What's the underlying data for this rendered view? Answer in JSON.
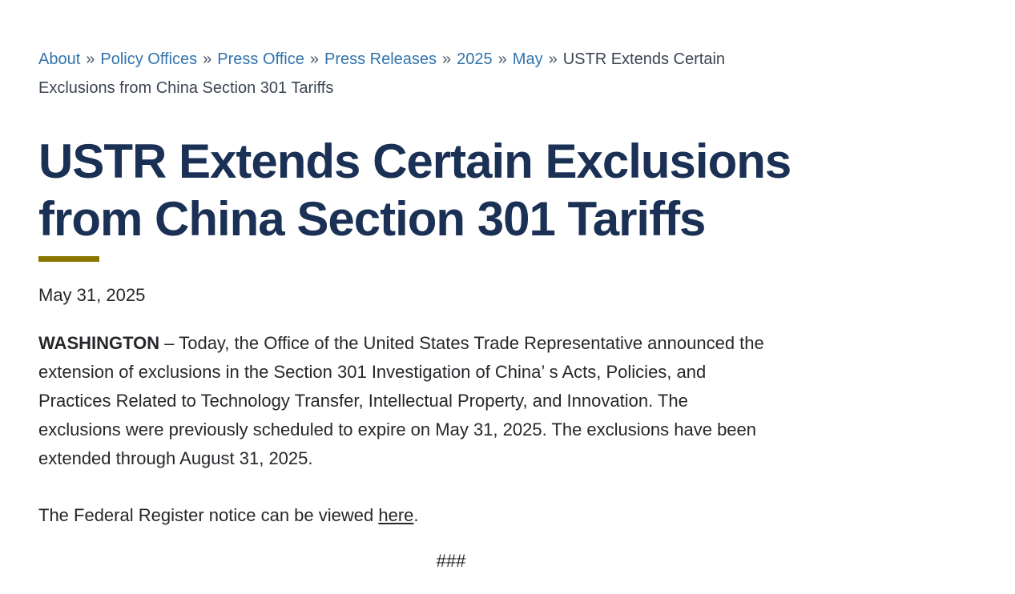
{
  "colors": {
    "link_blue": "#3173ad",
    "heading_navy": "#1a3054",
    "accent_gold": "#8a7400",
    "body_text": "#26272b"
  },
  "breadcrumb": {
    "separator": "»",
    "links": [
      {
        "label": "About"
      },
      {
        "label": "Policy Offices"
      },
      {
        "label": "Press Office"
      },
      {
        "label": "Press Releases"
      },
      {
        "label": "2025"
      },
      {
        "label": "May"
      }
    ],
    "current": "USTR Extends Certain\nExclusions from China Section 301 Tariffs"
  },
  "article": {
    "title": "USTR Extends Certain Exclusions\nfrom China Section 301 Tariffs",
    "date": "May 31, 2025",
    "body": {
      "lead": "WASHINGTON",
      "text": " – Today, the Office of the United States Trade Representative announced the\nextension of exclusions in the Section 301 Investigation of China’ s Acts, Policies, and\nPractices Related to Technology Transfer, Intellectual Property, and Innovation. The\nexclusions were previously scheduled to expire on May 31, 2025. The exclusions have been\nextended through August 31, 2025."
    },
    "notice": {
      "prefix": "The Federal Register notice can be viewed ",
      "link": "here",
      "suffix": "."
    },
    "end_mark": "###"
  }
}
